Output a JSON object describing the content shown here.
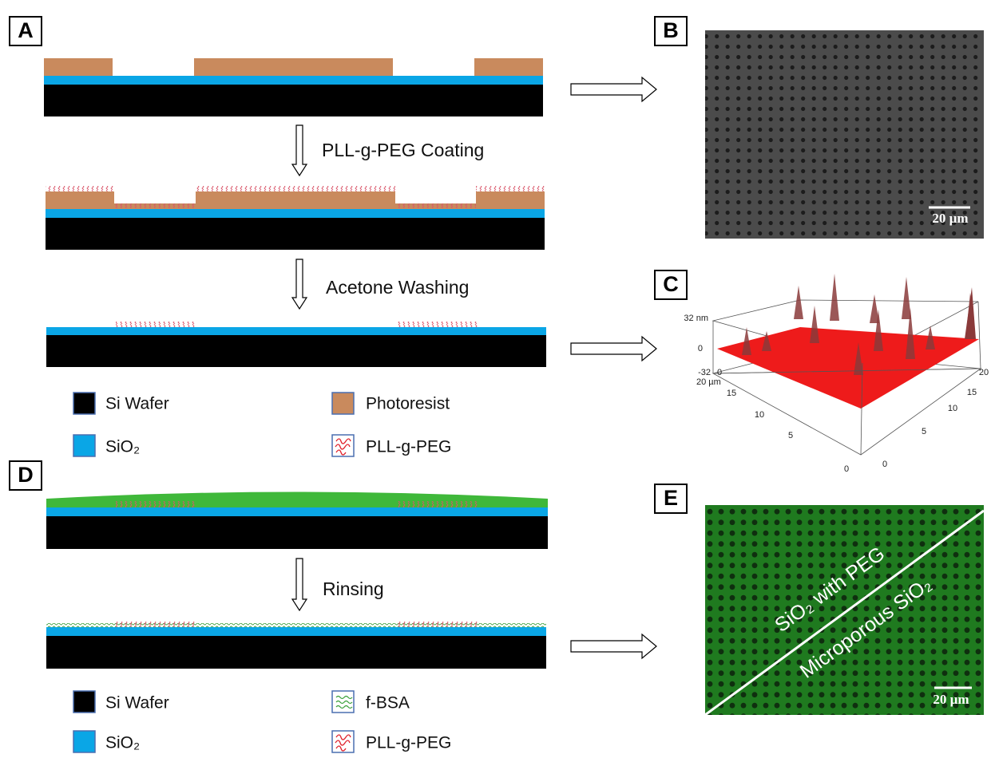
{
  "panel_a": {
    "label": "A",
    "steps": [
      "PLL-g-PEG Coating",
      "Acetone Washing"
    ],
    "legend": [
      "Si Wafer",
      "Photoresist",
      "SiO₂",
      "PLL-g-PEG"
    ]
  },
  "panel_b": {
    "label": "B",
    "scale_bar": "20 µm"
  },
  "panel_c": {
    "label": "C",
    "z_ticks": [
      "32 nm",
      "0",
      "-32"
    ],
    "origin": "0",
    "left_ticks": [
      "20 µm",
      "15",
      "10",
      "5",
      "0"
    ],
    "right_ticks": [
      "20",
      "15",
      "10",
      "5",
      "0"
    ]
  },
  "panel_d": {
    "label": "D",
    "steps": [
      "Rinsing"
    ],
    "legend": [
      "Si Wafer",
      "f-BSA",
      "SiO₂",
      "PLL-g-PEG"
    ]
  },
  "panel_e": {
    "label": "E",
    "regions": [
      "SiO₂ with PEG",
      "Microporous SiO₂"
    ],
    "scale_bar": "20 µm"
  }
}
